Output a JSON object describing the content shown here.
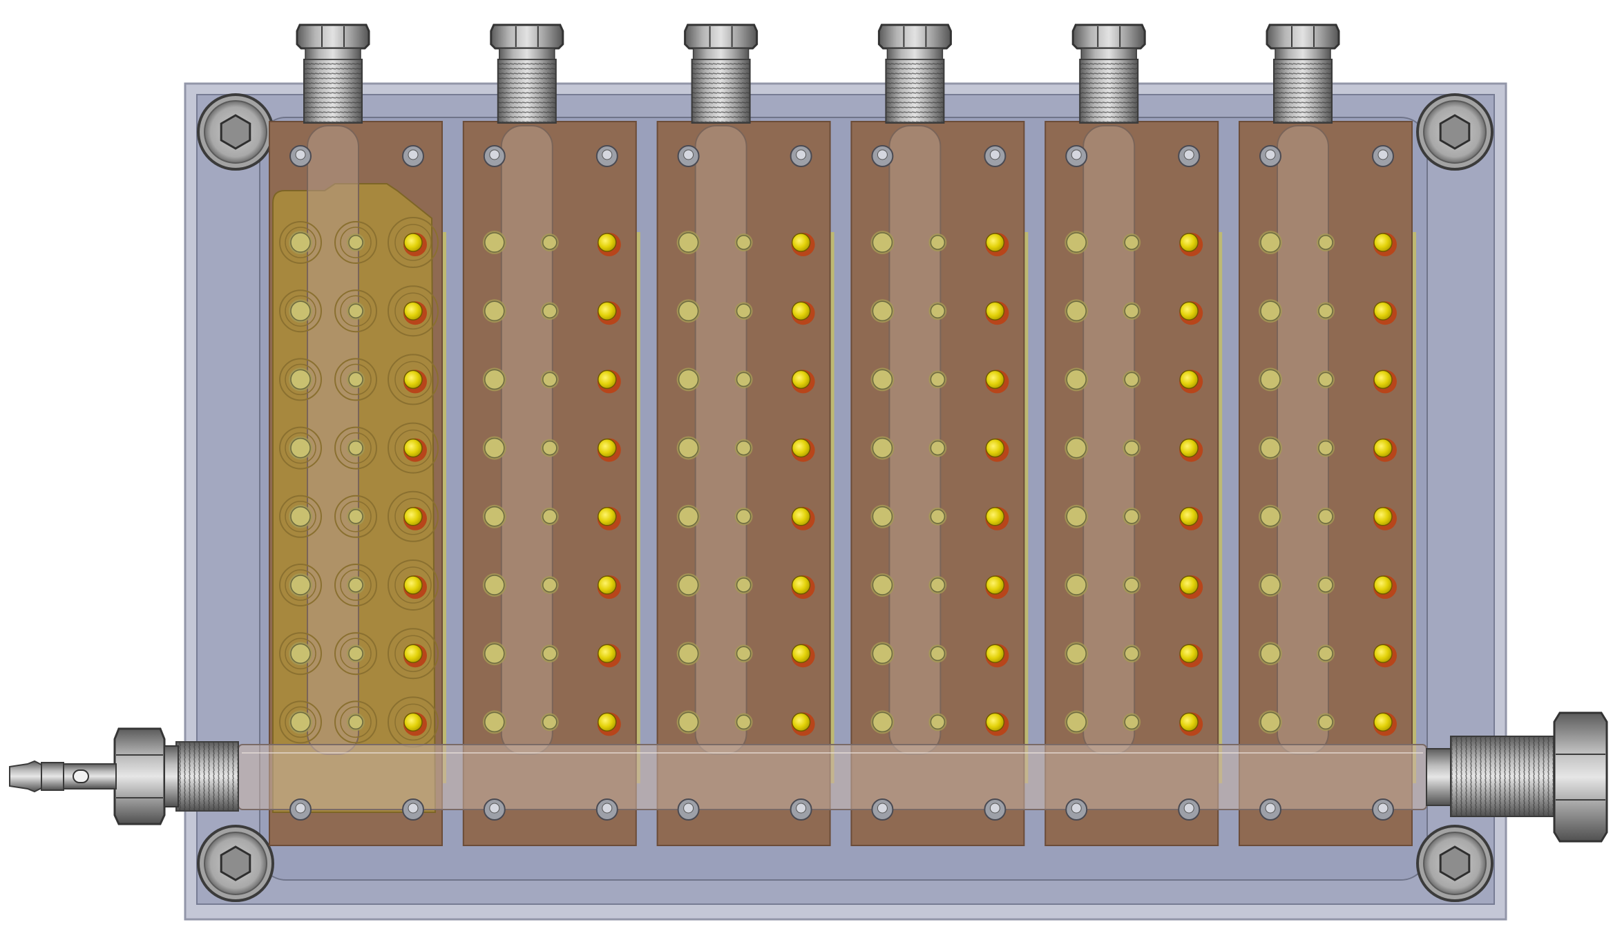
{
  "diagram": {
    "kind": "cad-render",
    "view": "top",
    "plate_count": 6,
    "highlighted_plate": 1,
    "hole_rows_per_plate": 8,
    "hole_columns_per_plate": 3,
    "corner_bolt_count": 4,
    "top_fitting_count": 6,
    "colors": {
      "background": "#ffffff",
      "housing": "#a9aec4",
      "housing_inner": "#9da2bd",
      "housing_border": "#6f7489",
      "plate": "#8f6a52",
      "plate_border": "#6b4c38",
      "highlight_plate": "#a7883e",
      "highlight_border": "#7d6526",
      "tube": "#b79a88",
      "hole_yellow": "#e6d60e",
      "hole_rim": "#b8451a",
      "hole_dim": "#c9c070",
      "fitting_metal": "#8a8a8a",
      "fitting_dark": "#4a4a4a"
    },
    "icons": [
      "hex-nut-icon",
      "socket-bolt-icon",
      "hose-barb-icon",
      "threaded-fitting-icon"
    ]
  }
}
